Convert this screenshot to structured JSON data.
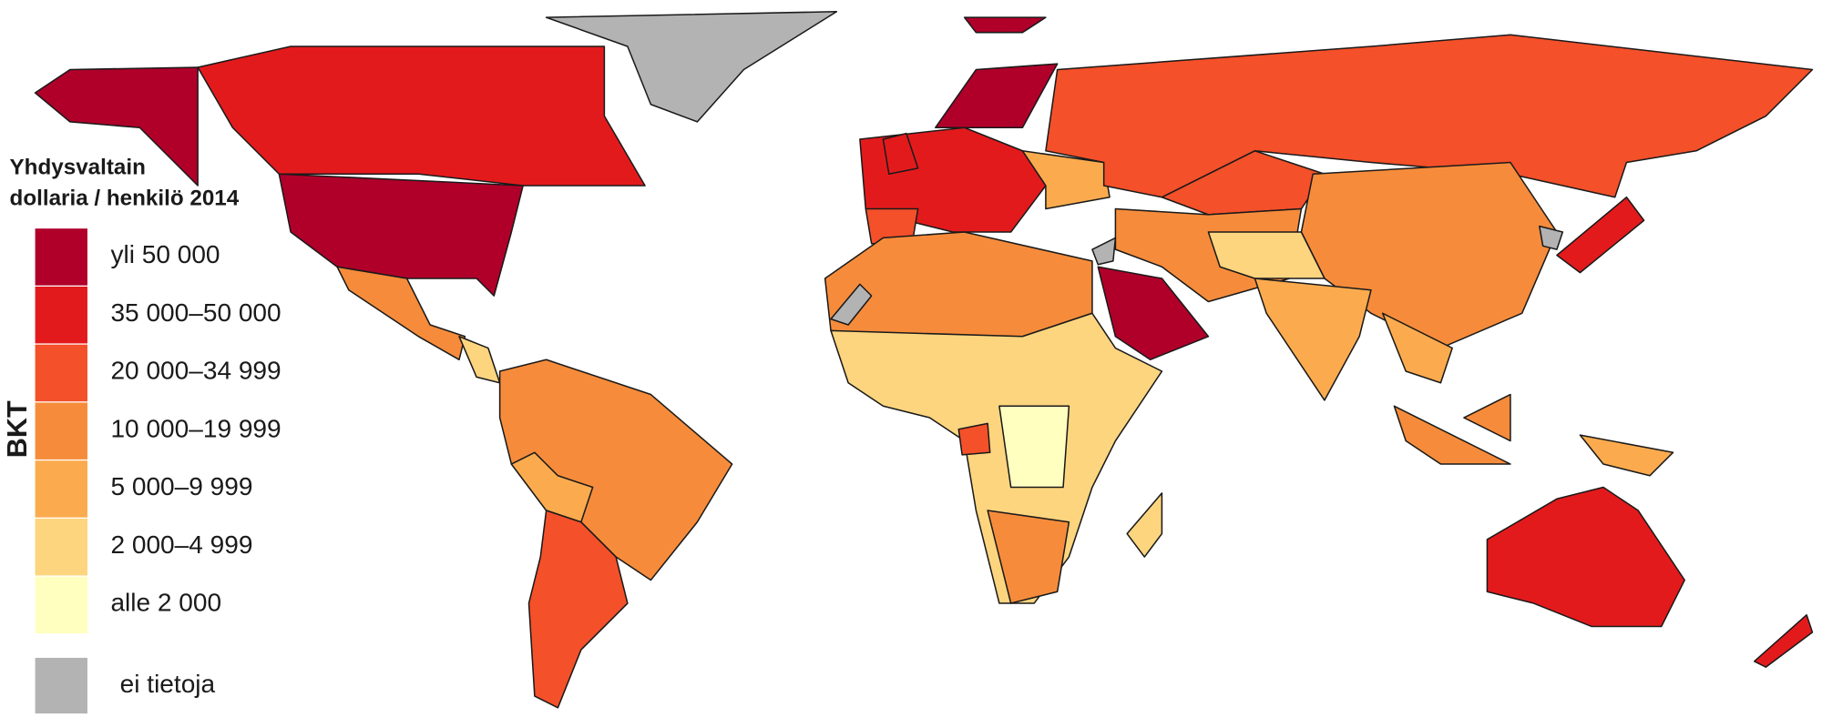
{
  "legend": {
    "title_line1": "Yhdysvaltain",
    "title_line2": "dollaria / henkilö 2014",
    "axis_label": "BKT",
    "items": [
      {
        "label": "yli 50 000",
        "color": "#b0002a"
      },
      {
        "label": "35 000–50 000",
        "color": "#e31a1c"
      },
      {
        "label": "20 000–34 999",
        "color": "#f4502a"
      },
      {
        "label": "10 000–19 999",
        "color": "#f68c3b"
      },
      {
        "label": "5 000–9 999",
        "color": "#fbab4e"
      },
      {
        "label": "2 000–4 999",
        "color": "#fdd57f"
      },
      {
        "label": "alle 2 000",
        "color": "#ffffc0"
      }
    ],
    "no_data": {
      "label": "ei tietoja",
      "color": "#b3b3b3"
    }
  }
}
